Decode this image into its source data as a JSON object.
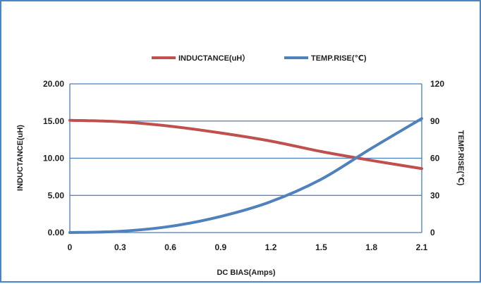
{
  "chart_data": {
    "type": "line",
    "title": "",
    "xlabel": "DC BIAS(Amps)",
    "ylabel": "INDUCTANCE(uH)",
    "y2label": "TEMP.RISE(℃)",
    "x": [
      0,
      0.3,
      0.6,
      0.9,
      1.2,
      1.5,
      1.8,
      2.1
    ],
    "x_tick_labels": [
      "0",
      "0.3",
      "0.6",
      "0.9",
      "1.2",
      "1.5",
      "1.8",
      "2.1"
    ],
    "xlim": [
      0,
      2.1
    ],
    "ylim": [
      0,
      20
    ],
    "y_tick_labels": [
      "20.00",
      "15.00",
      "10.00",
      "5.00",
      "0.00"
    ],
    "y_ticks": [
      20,
      15,
      10,
      5,
      0
    ],
    "y2lim": [
      0,
      120
    ],
    "y2_tick_labels": [
      "120",
      "90",
      "60",
      "30",
      "0"
    ],
    "y2_ticks": [
      120,
      90,
      60,
      30,
      0
    ],
    "grid": true,
    "legend_position": "top",
    "series": [
      {
        "name": "INDUCTANCE(uH）",
        "axis": "left",
        "color": "#c0504d",
        "values": [
          15.1,
          14.9,
          14.3,
          13.4,
          12.3,
          10.9,
          9.7,
          8.6
        ]
      },
      {
        "name": "TEMP.RISE(℃)",
        "axis": "right",
        "color": "#4f81bd",
        "values": [
          0,
          1,
          5,
          13,
          25,
          43,
          68,
          92
        ]
      }
    ]
  }
}
